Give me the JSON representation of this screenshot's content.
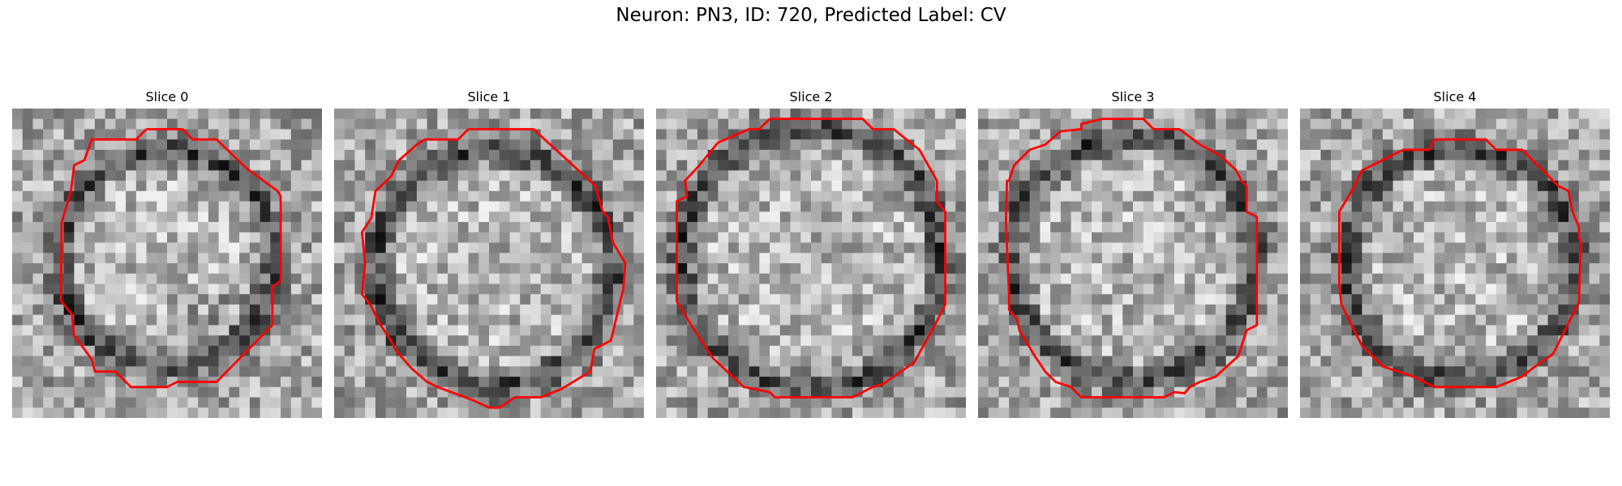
{
  "figure": {
    "title": "Neuron: PN3, ID: 720, Predicted Label: CV",
    "contour_color": "#ff0000"
  },
  "slices": [
    {
      "title": "Slice 0"
    },
    {
      "title": "Slice 1"
    },
    {
      "title": "Slice 2"
    },
    {
      "title": "Slice 3"
    },
    {
      "title": "Slice 4"
    }
  ]
}
